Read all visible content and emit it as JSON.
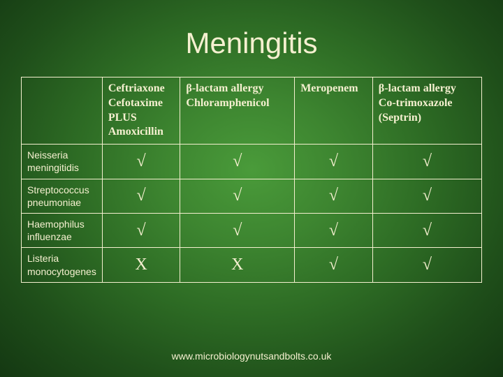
{
  "title": "Meningitis",
  "table": {
    "columns": [
      "",
      "Ceftriaxone\nCefotaxime\nPLUS\nAmoxicillin",
      "β-lactam allergy\nChloramphenicol",
      "Meropenem",
      "β-lactam allergy\nCo-trimoxazole\n(Septrin)"
    ],
    "rows": [
      {
        "label": "Neisseria meningitidis",
        "cells": [
          "√",
          "√",
          "√",
          "√"
        ]
      },
      {
        "label": "Streptococcus pneumoniae",
        "cells": [
          "√",
          "√",
          "√",
          "√"
        ]
      },
      {
        "label": "Haemophilus influenzae",
        "cells": [
          "√",
          "√",
          "√",
          "√"
        ]
      },
      {
        "label": "Listeria monocytogenes",
        "cells": [
          "X",
          "X",
          "√",
          "√"
        ]
      }
    ]
  },
  "footer": "www.microbiologynutsandbolts.co.uk",
  "colors": {
    "text": "#f5f0d0",
    "border": "#f5f0d0"
  }
}
